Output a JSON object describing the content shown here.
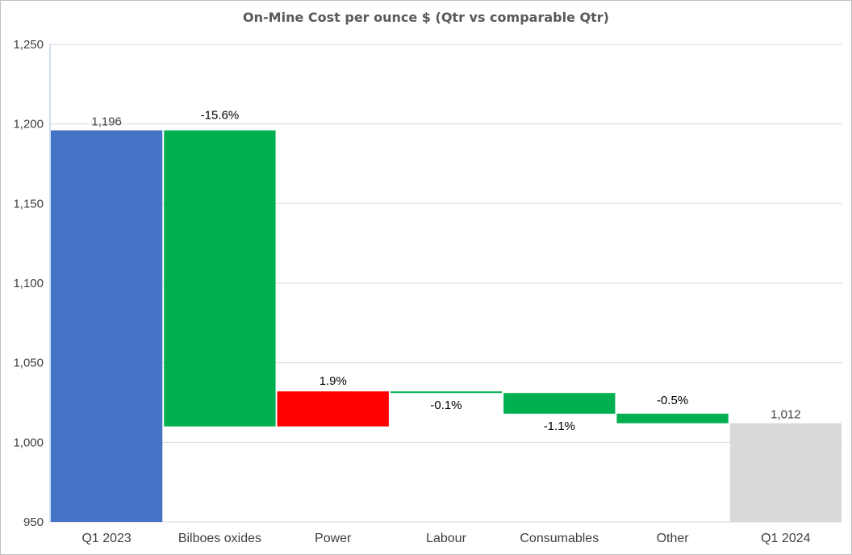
{
  "chart_data": {
    "type": "bar",
    "subtype": "waterfall",
    "title": "On-Mine Cost per ounce $  (Qtr vs comparable Qtr)",
    "xlabel": "",
    "ylabel": "",
    "ylim": [
      950,
      1250
    ],
    "yticks": [
      "950",
      "1,000",
      "1,050",
      "1,100",
      "1,150",
      "1,200",
      "1,250"
    ],
    "ytick_values": [
      950,
      1000,
      1050,
      1100,
      1150,
      1200,
      1250
    ],
    "grid": true,
    "legend": "none",
    "categories": [
      "Q1 2023",
      "Bilboes oxides",
      "Power",
      "Labour",
      "Consumables",
      "Other",
      "Q1 2024"
    ],
    "bars": [
      {
        "category": "Q1 2023",
        "kind": "total",
        "start": 950,
        "end": 1196,
        "label": "1,196",
        "color": "#4472c4"
      },
      {
        "category": "Bilboes oxides",
        "kind": "decrease",
        "start": 1196,
        "end": 1010,
        "label": "-15.6%",
        "color": "#00b050"
      },
      {
        "category": "Power",
        "kind": "increase",
        "start": 1010,
        "end": 1032,
        "label": "1.9%",
        "color": "#ff0000"
      },
      {
        "category": "Labour",
        "kind": "decrease",
        "start": 1032,
        "end": 1031,
        "label": "-0.1%",
        "color": "#00b050"
      },
      {
        "category": "Consumables",
        "kind": "decrease",
        "start": 1031,
        "end": 1018,
        "label": "-1.1%",
        "color": "#00b050"
      },
      {
        "category": "Other",
        "kind": "decrease",
        "start": 1018,
        "end": 1012,
        "label": "-0.5%",
        "color": "#00b050"
      },
      {
        "category": "Q1 2024",
        "kind": "total",
        "start": 950,
        "end": 1012,
        "label": "1,012",
        "color": "#d9d9d9"
      }
    ]
  }
}
